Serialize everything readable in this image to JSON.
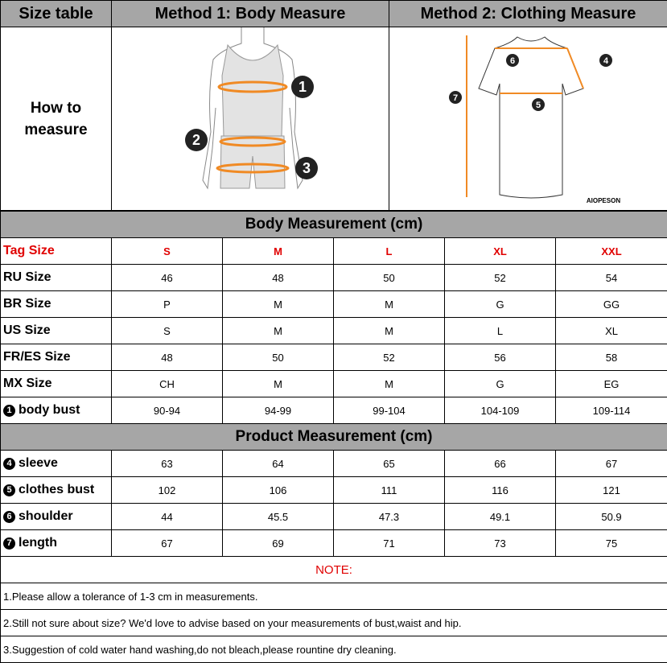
{
  "header": {
    "size_table": "Size table",
    "method1": "Method 1: Body  Measure",
    "method2": "Method 2: Clothing Measure"
  },
  "how_to": {
    "label_line1": "How to",
    "label_line2": "measure",
    "body_markers": [
      "1",
      "2",
      "3"
    ],
    "clothing_markers": [
      "4",
      "5",
      "6",
      "7"
    ],
    "brand": "AIOPESON"
  },
  "body_section": {
    "title": "Body Measurement (cm)"
  },
  "product_section": {
    "title": "Product Measurement (cm)"
  },
  "sizes": {
    "label": "Tag Size",
    "values": [
      "S",
      "M",
      "L",
      "XL",
      "XXL"
    ]
  },
  "body_rows": [
    {
      "label": "RU Size",
      "values": [
        "46",
        "48",
        "50",
        "52",
        "54"
      ]
    },
    {
      "label": "BR Size",
      "values": [
        "P",
        "M",
        "M",
        "G",
        "GG"
      ]
    },
    {
      "label": "US Size",
      "values": [
        "S",
        "M",
        "M",
        "L",
        "XL"
      ]
    },
    {
      "label": "FR/ES Size",
      "values": [
        "48",
        "50",
        "52",
        "56",
        "58"
      ]
    },
    {
      "label": "MX Size",
      "values": [
        "CH",
        "M",
        "M",
        "G",
        "EG"
      ]
    },
    {
      "marker": "1",
      "label": "body bust",
      "values": [
        "90-94",
        "94-99",
        "99-104",
        "104-109",
        "109-114"
      ]
    }
  ],
  "product_rows": [
    {
      "marker": "4",
      "label": "sleeve",
      "values": [
        "63",
        "64",
        "65",
        "66",
        "67"
      ]
    },
    {
      "marker": "5",
      "label": "clothes bust",
      "values": [
        "102",
        "106",
        "111",
        "116",
        "121"
      ]
    },
    {
      "marker": "6",
      "label": "shoulder",
      "values": [
        "44",
        "45.5",
        "47.3",
        "49.1",
        "50.9"
      ]
    },
    {
      "marker": "7",
      "label": "length",
      "values": [
        "67",
        "69",
        "71",
        "73",
        "75"
      ]
    }
  ],
  "notes": {
    "title": "NOTE:",
    "items": [
      "1.Please allow a tolerance of 1-3 cm in measurements.",
      "2.Still not sure about size? We'd love to advise based on your measurements of bust,waist and hip.",
      "3.Suggestion of cold water hand washing,do not bleach,please rountine dry cleaning."
    ]
  },
  "colors": {
    "header_bg": "#a6a6a6",
    "accent_red": "#e00000",
    "measure_line": "#f08a24"
  }
}
